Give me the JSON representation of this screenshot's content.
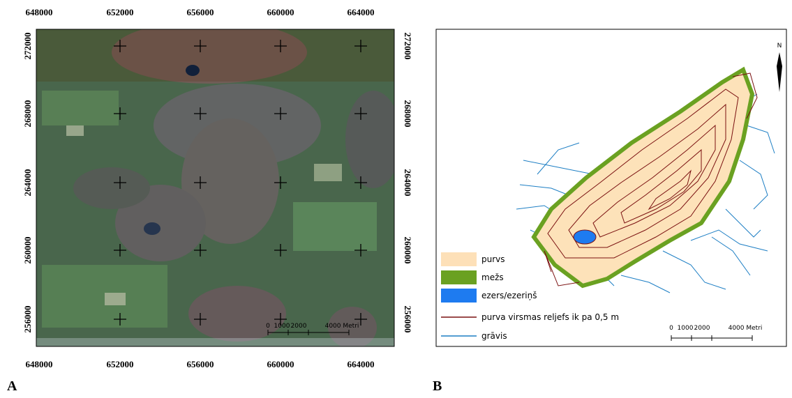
{
  "panel_a": {
    "label": "A",
    "x_ticks": [
      648000,
      652000,
      656000,
      660000,
      664000
    ],
    "y_ticks": [
      272000,
      268000,
      264000,
      260000,
      256000
    ],
    "scale_labels": [
      "0",
      "1000",
      "2000",
      "4000 Metri"
    ]
  },
  "panel_b": {
    "label": "B",
    "north": "N",
    "legend": [
      "purvs",
      "mežs",
      "ezers/ezeriņš",
      "purva virsmas reljefs ik pa 0,5 m",
      "grāvis"
    ],
    "scale_labels": [
      "0",
      "1000",
      "2000",
      "4000 Metri"
    ]
  }
}
